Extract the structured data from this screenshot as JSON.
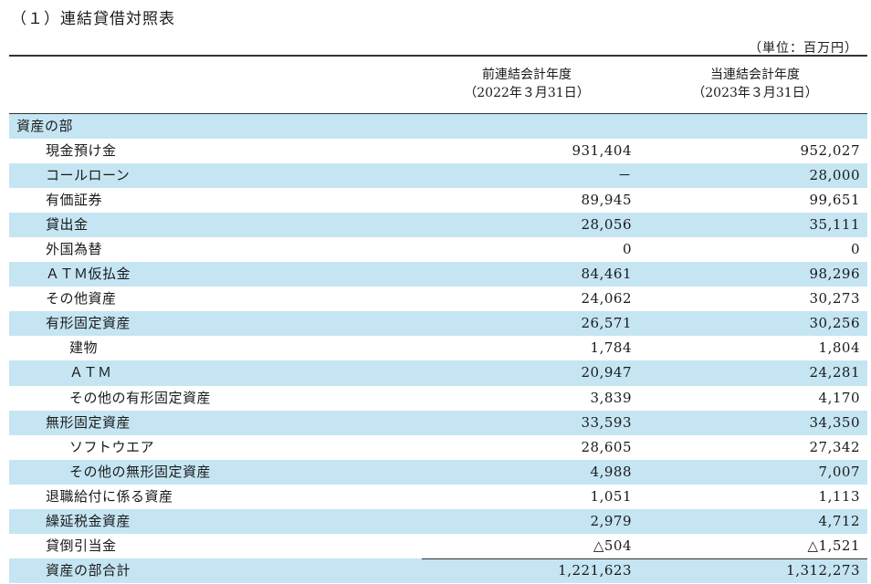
{
  "title": "（１）連結貸借対照表",
  "unit": "（単位：百万円）",
  "columns": [
    {
      "line1": "前連結会計年度",
      "line2": "（2022年３月31日）"
    },
    {
      "line1": "当連結会計年度",
      "line2": "（2023年３月31日）"
    }
  ],
  "rows": [
    {
      "label": "資産の部",
      "v1": "",
      "v2": ""
    },
    {
      "label": "現金預け金",
      "v1": "931,404",
      "v2": "952,027"
    },
    {
      "label": "コールローン",
      "v1": "－",
      "v2": "28,000"
    },
    {
      "label": "有価証券",
      "v1": "89,945",
      "v2": "99,651"
    },
    {
      "label": "貸出金",
      "v1": "28,056",
      "v2": "35,111"
    },
    {
      "label": "外国為替",
      "v1": "0",
      "v2": "0"
    },
    {
      "label": "ＡＴＭ仮払金",
      "v1": "84,461",
      "v2": "98,296"
    },
    {
      "label": "その他資産",
      "v1": "24,062",
      "v2": "30,273"
    },
    {
      "label": "有形固定資産",
      "v1": "26,571",
      "v2": "30,256"
    },
    {
      "label": "建物",
      "v1": "1,784",
      "v2": "1,804"
    },
    {
      "label": "ＡＴＭ",
      "v1": "20,947",
      "v2": "24,281"
    },
    {
      "label": "その他の有形固定資産",
      "v1": "3,839",
      "v2": "4,170"
    },
    {
      "label": "無形固定資産",
      "v1": "33,593",
      "v2": "34,350"
    },
    {
      "label": "ソフトウエア",
      "v1": "28,605",
      "v2": "27,342"
    },
    {
      "label": "その他の無形固定資産",
      "v1": "4,988",
      "v2": "7,007"
    },
    {
      "label": "退職給付に係る資産",
      "v1": "1,051",
      "v2": "1,113"
    },
    {
      "label": "繰延税金資産",
      "v1": "2,979",
      "v2": "4,712"
    },
    {
      "label": "貸倒引当金",
      "v1": "△504",
      "v2": "△1,521"
    },
    {
      "label": "資産の部合計",
      "v1": "1,221,623",
      "v2": "1,312,273"
    }
  ]
}
